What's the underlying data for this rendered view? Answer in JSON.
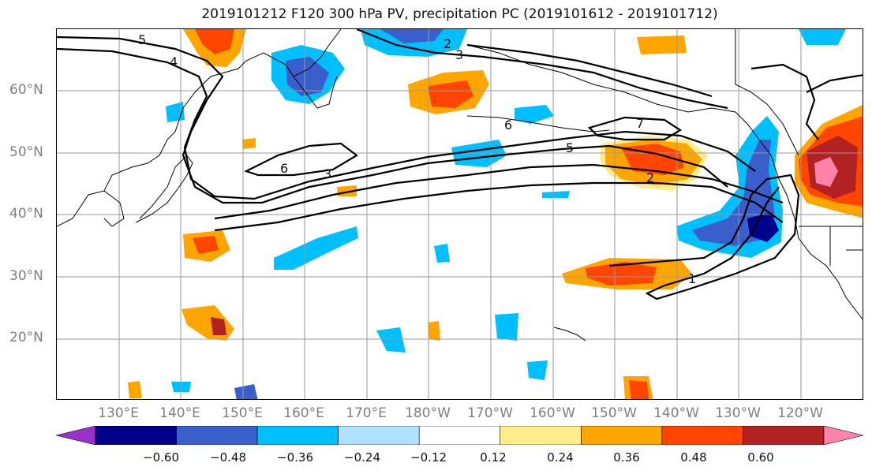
{
  "title": "2019101212 F120 300 hPa PV, precipitation PC (2019101612 - 2019101712)",
  "lat_labels": [
    "60°N",
    "50°N",
    "40°N",
    "30°N",
    "20°N"
  ],
  "lon_labels": [
    "130°E",
    "140°E",
    "150°E",
    "160°E",
    "170°E",
    "180°W",
    "170°W",
    "160°W",
    "150°W",
    "140°W",
    "130°W",
    "120°W"
  ],
  "contour_labels": [
    "5",
    "4",
    "2",
    "3",
    "6",
    "7",
    "5",
    "6",
    "3",
    "2",
    "1"
  ],
  "colorbar": {
    "ticks": [
      "−0.60",
      "−0.48",
      "−0.36",
      "−0.24",
      "−0.12",
      "0.12",
      "0.24",
      "0.36",
      "0.48",
      "0.60"
    ],
    "colors": [
      "#9932cc",
      "#00008b",
      "#3a5fcd",
      "#00bfff",
      "#b0e2ff",
      "#ffffff",
      "#ffec8b",
      "#ffa500",
      "#ff4500",
      "#b22222",
      "#ff82ab"
    ]
  },
  "colors": {
    "neg_strong": "#00008b",
    "neg_mid": "#3a5fcd",
    "neg_light": "#00bfff",
    "neg_pale": "#b0e2ff",
    "pos_pale": "#ffec8b",
    "pos_mid": "#ffa500",
    "pos_strong": "#ff4500",
    "pos_dark": "#b22222",
    "pos_max": "#ff82ab"
  }
}
